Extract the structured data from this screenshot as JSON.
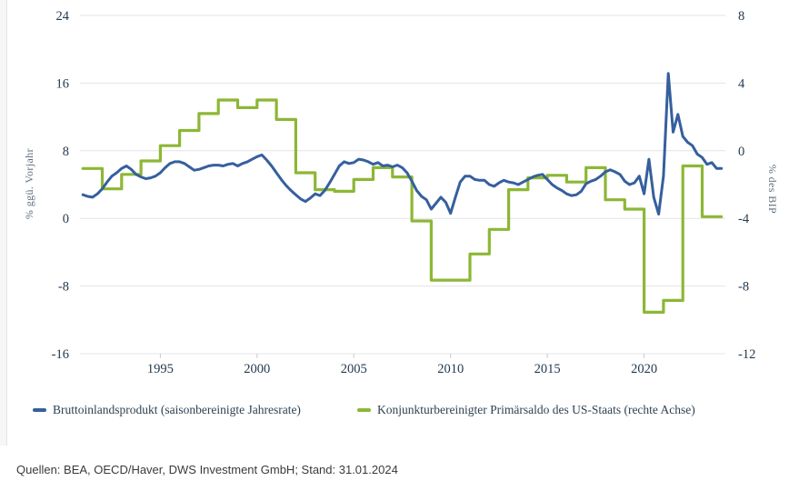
{
  "chart_data": {
    "type": "line",
    "title": "",
    "grid": "horizontal",
    "left_axis": {
      "label": "% ggü. Vorjahr",
      "ticks": [
        24,
        16,
        8,
        0,
        -8,
        -16
      ],
      "range": [
        -16,
        24
      ]
    },
    "right_axis": {
      "label": "% des BIP",
      "ticks": [
        8,
        4,
        0,
        -4,
        -8,
        -12
      ],
      "range": [
        -12,
        8
      ]
    },
    "x_axis": {
      "ticks": [
        1995,
        2000,
        2005,
        2010,
        2015,
        2020
      ],
      "range": [
        1990.85,
        2024.2
      ]
    },
    "series": [
      {
        "name": "Bruttoinlandsprodukt (saisonbereinigte Jahresrate)",
        "axis": "left",
        "color": "#365f9d",
        "style": "line",
        "x_start": 1991.0,
        "x_step": 0.25,
        "values": [
          2.8,
          2.6,
          2.5,
          2.9,
          3.5,
          4.3,
          5.0,
          5.4,
          5.9,
          6.2,
          5.8,
          5.2,
          4.9,
          4.7,
          4.8,
          5.0,
          5.4,
          6.0,
          6.5,
          6.7,
          6.7,
          6.5,
          6.1,
          5.7,
          5.8,
          6.0,
          6.2,
          6.3,
          6.3,
          6.2,
          6.4,
          6.5,
          6.2,
          6.5,
          6.7,
          7.0,
          7.3,
          7.5,
          6.9,
          6.2,
          5.4,
          4.6,
          3.9,
          3.3,
          2.8,
          2.3,
          2.0,
          2.4,
          2.9,
          2.7,
          3.3,
          4.2,
          5.2,
          6.2,
          6.7,
          6.5,
          6.6,
          7.0,
          6.9,
          6.7,
          6.4,
          6.6,
          6.2,
          6.3,
          6.1,
          6.3,
          6.0,
          5.4,
          4.4,
          3.3,
          2.6,
          2.2,
          1.1,
          1.8,
          2.5,
          1.9,
          0.6,
          2.5,
          4.3,
          5.0,
          5.0,
          4.6,
          4.5,
          4.5,
          4.0,
          3.8,
          4.2,
          4.5,
          4.3,
          4.2,
          4.0,
          4.3,
          4.6,
          4.9,
          5.1,
          5.2,
          4.6,
          4.0,
          3.6,
          3.3,
          2.9,
          2.7,
          2.8,
          3.2,
          4.1,
          4.4,
          4.6,
          5.0,
          5.5,
          5.75,
          5.5,
          5.2,
          4.4,
          4.0,
          4.2,
          5.0,
          2.9,
          7.0,
          2.5,
          0.5,
          5.0,
          17.15,
          10.2,
          12.3,
          9.7,
          9.0,
          8.6,
          7.6,
          7.2,
          6.4,
          6.6,
          5.9,
          5.9
        ]
      },
      {
        "name": "Konjunkturbereinigter Primärsaldo des US-Staats (rechte Achse)",
        "axis": "right",
        "color": "#8cb735",
        "style": "step-annual",
        "x_start": 1991,
        "x_step": 1,
        "values": [
          -1.05,
          -2.25,
          -1.4,
          -0.6,
          0.3,
          1.2,
          2.2,
          3.0,
          2.55,
          3.0,
          1.85,
          -1.3,
          -2.3,
          -2.4,
          -1.7,
          -1.0,
          -1.55,
          -4.15,
          -7.65,
          -7.65,
          -6.1,
          -4.65,
          -2.3,
          -1.6,
          -1.45,
          -1.85,
          -1.0,
          -2.9,
          -3.45,
          -9.55,
          -8.85,
          -0.9,
          -3.9
        ]
      }
    ]
  },
  "legend": [
    {
      "label": "Bruttoinlandsprodukt (saisonbereinigte Jahresrate)",
      "color": "#365f9d"
    },
    {
      "label": "Konjunkturbereinigter Primärsaldo des US-Staats (rechte Achse)",
      "color": "#8cb735"
    }
  ],
  "footer": {
    "source": "Quellen: BEA, OECD/Haver, DWS Investment GmbH; Stand: 31.01.2024"
  },
  "colors": {
    "grid": "#e4e4e6",
    "tick_mark": "#c8cbd0",
    "tick_text": "#24394f",
    "axis_title": "#5f6e7e"
  }
}
